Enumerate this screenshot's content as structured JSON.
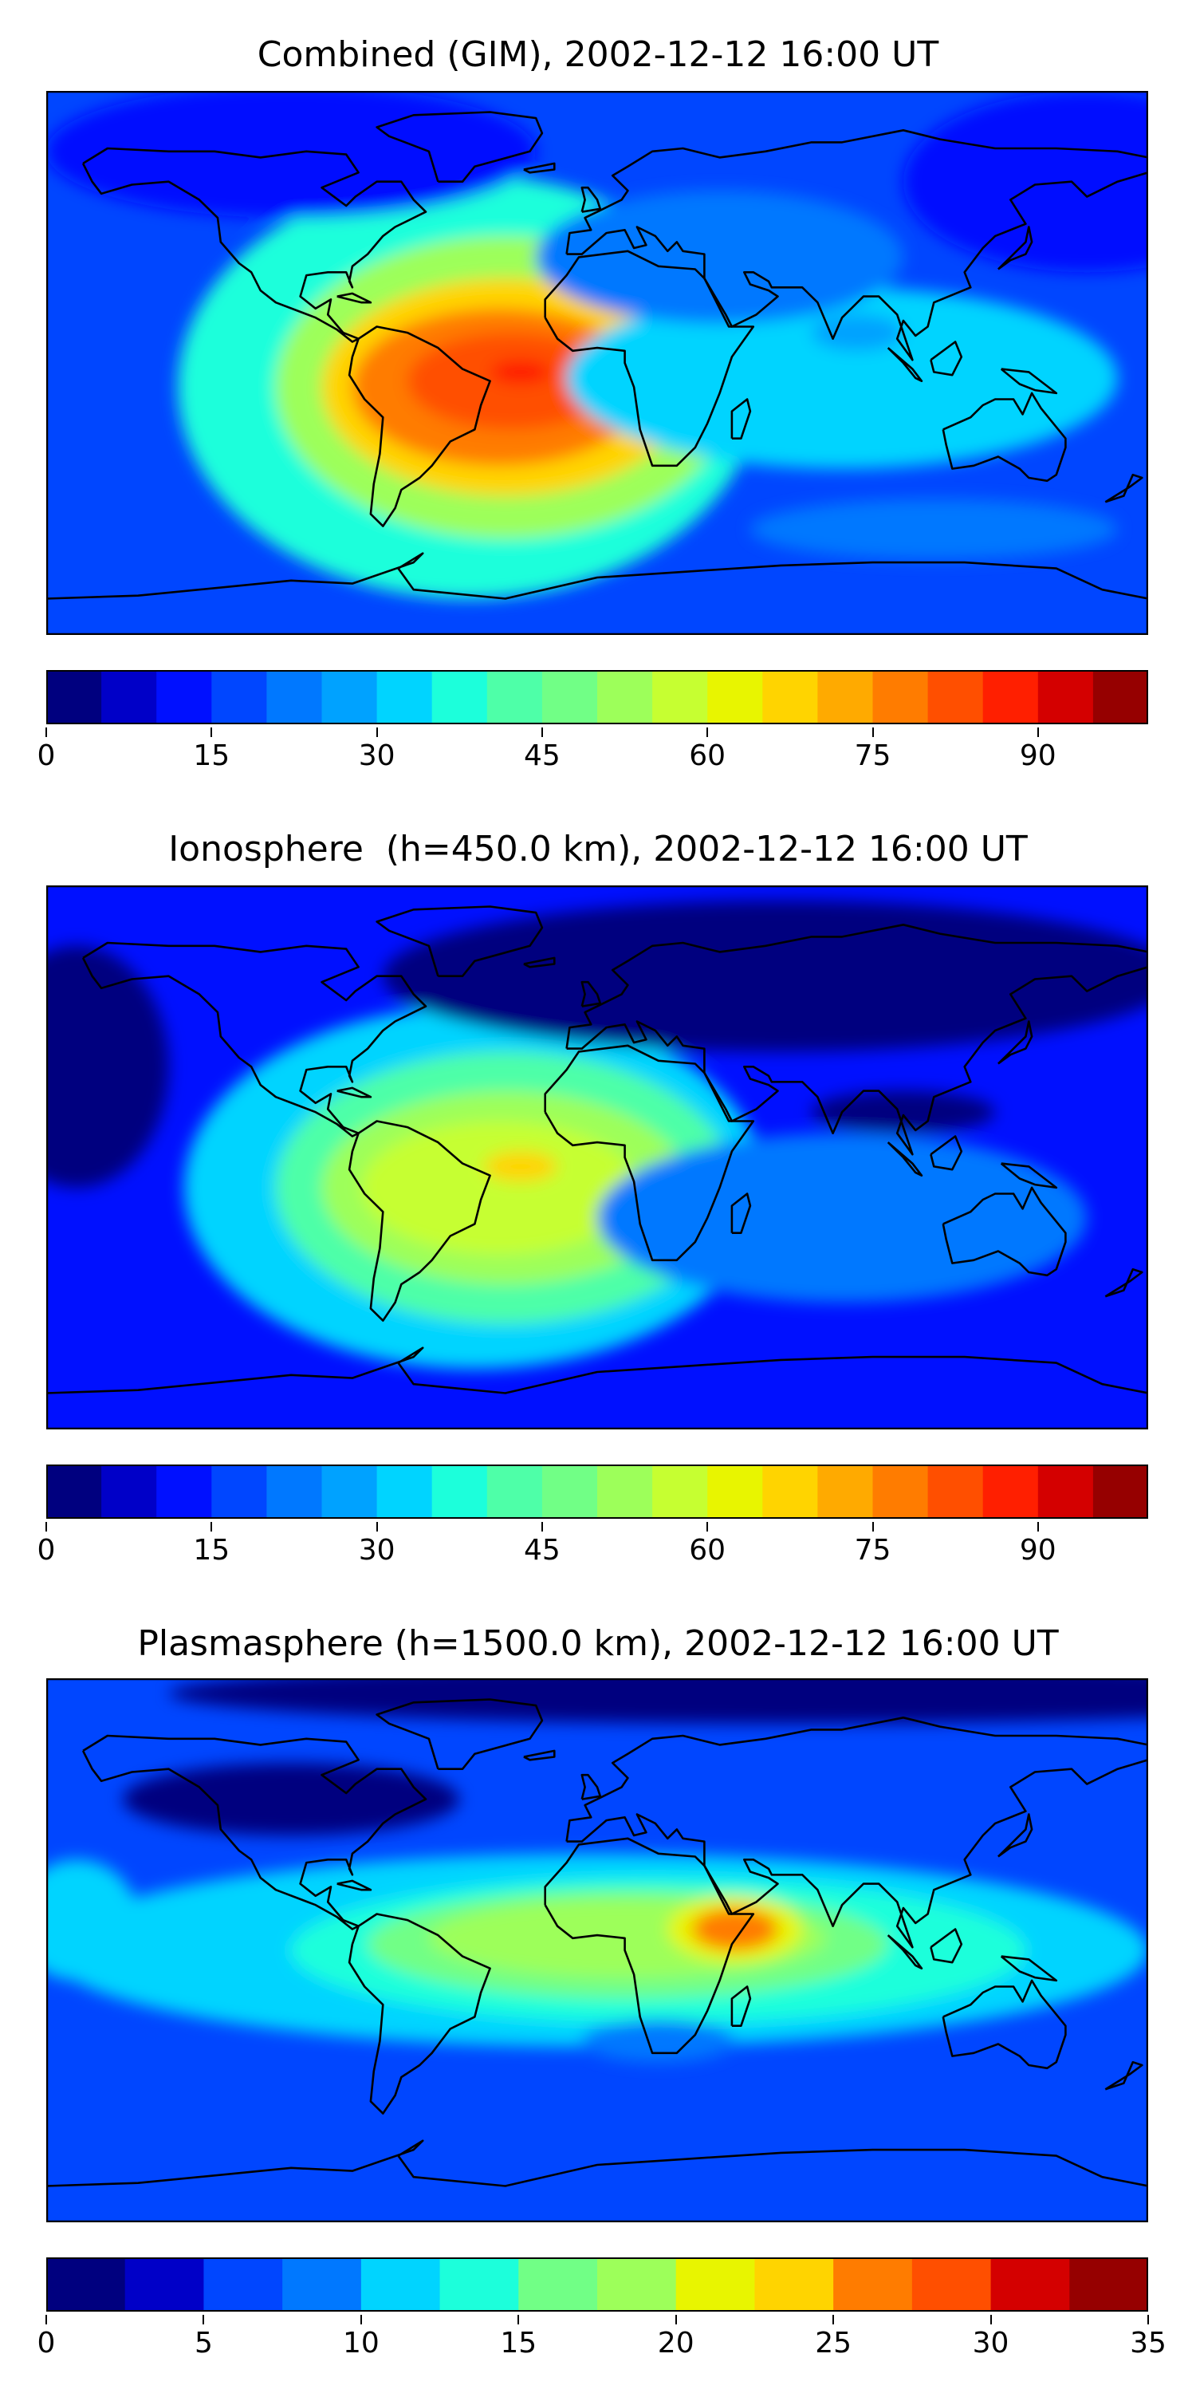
{
  "colors": {
    "levels_jet": [
      "#00007f",
      "#0000c8",
      "#0010ff",
      "#0046ff",
      "#0078ff",
      "#00a2ff",
      "#00d4ff",
      "#1cffdb",
      "#4effa8",
      "#71ff86",
      "#9dff5a",
      "#c6ff31",
      "#e8f500",
      "#ffd400",
      "#ffaa00",
      "#ff7c00",
      "#ff4f00",
      "#ff1f00",
      "#d40000",
      "#960000"
    ],
    "coast": "#000000",
    "frame": "#000000"
  },
  "panels": [
    {
      "title": "Combined (GIM), 2002-12-12 16:00 UT",
      "levels": [
        0,
        5,
        10,
        15,
        20,
        25,
        30,
        35,
        40,
        45,
        50,
        55,
        60,
        65,
        70,
        75,
        80,
        85,
        90,
        95,
        100
      ],
      "ticks": [
        "0",
        "15",
        "30",
        "45",
        "60",
        "75",
        "90"
      ],
      "tick_values": [
        0,
        15,
        30,
        45,
        60,
        75,
        90
      ],
      "max": 100,
      "background_level": 3,
      "features": [
        {
          "lon": -42,
          "lat": -8,
          "rlon": 95,
          "rlat": 70,
          "level": 7
        },
        {
          "lon": -30,
          "lat": -8,
          "rlon": 75,
          "rlat": 50,
          "level": 10
        },
        {
          "lon": -30,
          "lat": -8,
          "rlon": 60,
          "rlat": 36,
          "level": 13
        },
        {
          "lon": -32,
          "lat": -8,
          "rlon": 48,
          "rlat": 26,
          "level": 15
        },
        {
          "lon": -28,
          "lat": -6,
          "rlon": 34,
          "rlat": 16,
          "level": 16
        },
        {
          "lon": -25,
          "lat": -3,
          "rlon": 10,
          "rlat": 4,
          "level": 17
        },
        {
          "lon": 80,
          "lat": -5,
          "rlon": 90,
          "rlat": 30,
          "level": 6
        },
        {
          "lon": 40,
          "lat": 35,
          "rlon": 60,
          "rlat": 22,
          "level": 4
        },
        {
          "lon": 85,
          "lat": 10,
          "rlon": 15,
          "rlat": 6,
          "level": 5
        },
        {
          "lon": -100,
          "lat": 70,
          "rlon": 80,
          "rlat": 22,
          "level": 2
        },
        {
          "lon": 160,
          "lat": 60,
          "rlon": 60,
          "rlat": 30,
          "level": 2
        },
        {
          "lon": 110,
          "lat": -55,
          "rlon": 60,
          "rlat": 10,
          "level": 4
        }
      ]
    },
    {
      "title": "Ionosphere  (h=450.0 km), 2002-12-12 16:00 UT",
      "levels": [
        0,
        5,
        10,
        15,
        20,
        25,
        30,
        35,
        40,
        45,
        50,
        55,
        60,
        65,
        70,
        75,
        80,
        85,
        90,
        95,
        100
      ],
      "ticks": [
        "0",
        "15",
        "30",
        "45",
        "60",
        "75",
        "90"
      ],
      "tick_values": [
        0,
        15,
        30,
        45,
        60,
        75,
        90
      ],
      "max": 100,
      "background_level": 2,
      "features": [
        {
          "lon": -40,
          "lat": -10,
          "rlon": 95,
          "rlat": 60,
          "level": 6
        },
        {
          "lon": -30,
          "lat": -10,
          "rlon": 75,
          "rlat": 45,
          "level": 8
        },
        {
          "lon": -30,
          "lat": -10,
          "rlon": 60,
          "rlat": 32,
          "level": 10
        },
        {
          "lon": -32,
          "lat": -10,
          "rlon": 45,
          "rlat": 22,
          "level": 11
        },
        {
          "lon": -25,
          "lat": -3,
          "rlon": 12,
          "rlat": 5,
          "level": 13
        },
        {
          "lon": 60,
          "lat": 60,
          "rlon": 130,
          "rlat": 25,
          "level": 0
        },
        {
          "lon": 100,
          "lat": 15,
          "rlon": 30,
          "rlat": 7,
          "level": 0
        },
        {
          "lon": 80,
          "lat": -20,
          "rlon": 80,
          "rlat": 28,
          "level": 4
        },
        {
          "lon": -170,
          "lat": 30,
          "rlon": 30,
          "rlat": 40,
          "level": 0
        }
      ]
    },
    {
      "title": "Plasmasphere (h=1500.0 km), 2002-12-12 16:00 UT",
      "levels": [
        0,
        2.5,
        5,
        7.5,
        10,
        12.5,
        15,
        17.5,
        20,
        22.5,
        25,
        27.5,
        30,
        32.5,
        35
      ],
      "ticks": [
        "0",
        "5",
        "10",
        "15",
        "20",
        "25",
        "30",
        "35"
      ],
      "tick_values": [
        0,
        5,
        10,
        15,
        20,
        25,
        30,
        35
      ],
      "max": 35,
      "background_level": 2,
      "features": [
        {
          "lon": 0,
          "lat": 0,
          "rlon": 180,
          "rlat": 32,
          "level": 4
        },
        {
          "lon": 20,
          "lat": 0,
          "rlon": 120,
          "rlat": 24,
          "level": 5
        },
        {
          "lon": 10,
          "lat": 2,
          "rlon": 85,
          "rlat": 18,
          "level": 6
        },
        {
          "lon": 10,
          "lat": 4,
          "rlon": 65,
          "rlat": 13,
          "level": 7
        },
        {
          "lon": 45,
          "lat": 7,
          "rlon": 22,
          "rlat": 11,
          "level": 8
        },
        {
          "lon": 45,
          "lat": 7,
          "rlon": 14,
          "rlat": 7,
          "level": 10
        },
        {
          "lon": -100,
          "lat": 50,
          "rlon": 55,
          "rlat": 12,
          "level": 0
        },
        {
          "lon": 20,
          "lat": -30,
          "rlon": 25,
          "rlat": 7,
          "level": 3
        },
        {
          "lon": -170,
          "lat": 10,
          "rlon": 20,
          "rlat": 20,
          "level": 4
        },
        {
          "lon": 60,
          "lat": 85,
          "rlon": 200,
          "rlat": 10,
          "level": 0
        }
      ]
    }
  ]
}
